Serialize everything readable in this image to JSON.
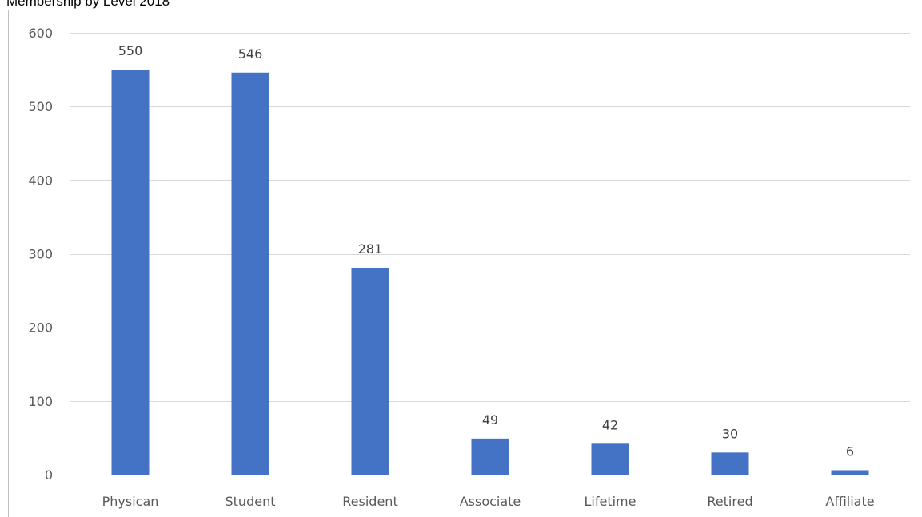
{
  "chart_data": {
    "type": "bar",
    "title": "Membership by Level 2018",
    "xlabel": "",
    "ylabel": "",
    "categories": [
      "Physican",
      "Student",
      "Resident",
      "Associate",
      "Lifetime",
      "Retired",
      "Affiliate"
    ],
    "values": [
      550,
      546,
      281,
      49,
      42,
      30,
      6
    ],
    "ylim": [
      0,
      600
    ],
    "yticks": [
      0,
      100,
      200,
      300,
      400,
      500,
      600
    ],
    "grid": true,
    "legend": "none",
    "bar_color": "#4472C4",
    "gridline_color": "#D9D9D9"
  }
}
